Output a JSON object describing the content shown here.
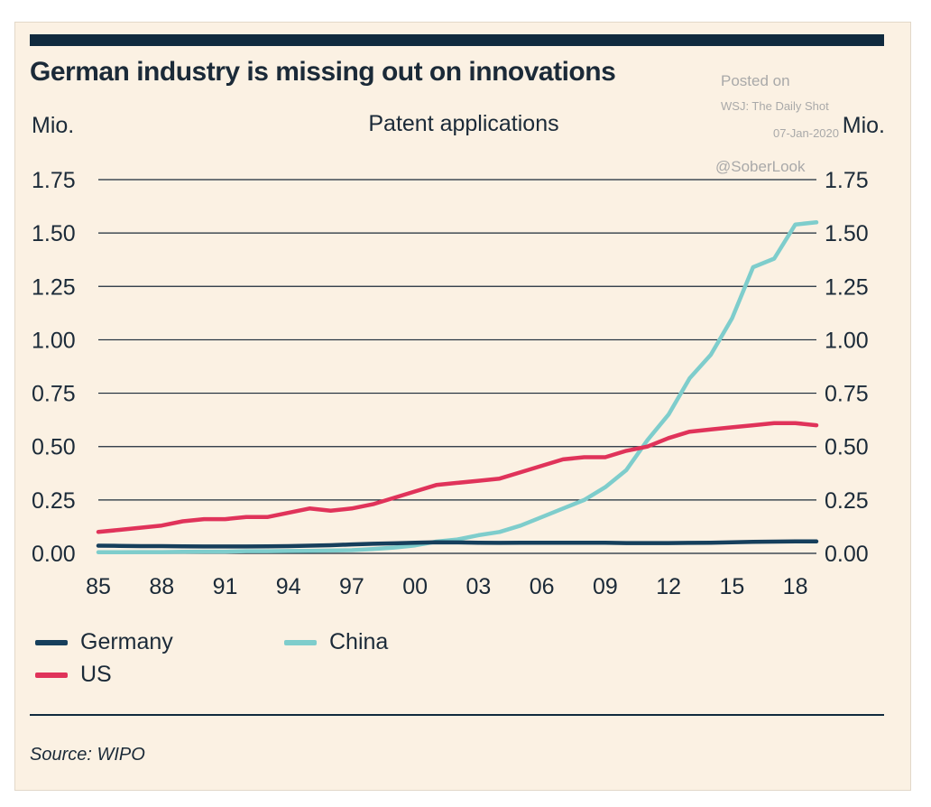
{
  "title": "German industry is missing out on innovations",
  "watermark": {
    "line1": "Posted on",
    "line2": "WSJ: The Daily Shot",
    "line3": "07-Jan-2020",
    "line4": "@SoberLook"
  },
  "source": "Source: WIPO",
  "colors": {
    "germany": "#163f5c",
    "us": "#e0335a",
    "china": "#7ecdcc",
    "grid": "#1b2a38",
    "background": "#fbf1e3"
  },
  "chart_data": {
    "type": "line",
    "title": "Patent applications",
    "ylabel_left": "Mio.",
    "ylabel_right": "Mio.",
    "ylim": [
      0,
      1.75
    ],
    "yticks": [
      "0.00",
      "0.25",
      "0.50",
      "0.75",
      "1.00",
      "1.25",
      "1.50",
      "1.75"
    ],
    "xlim": [
      1985,
      2019
    ],
    "xticks": [
      "85",
      "88",
      "91",
      "94",
      "97",
      "00",
      "03",
      "06",
      "09",
      "12",
      "15",
      "18"
    ],
    "xtick_years": [
      1985,
      1988,
      1991,
      1994,
      1997,
      2000,
      2003,
      2006,
      2009,
      2012,
      2015,
      2018
    ],
    "legend_position": "bottom-left",
    "grid": true,
    "series": [
      {
        "name": "Germany",
        "color": "#163f5c",
        "x": [
          1985,
          1986,
          1987,
          1988,
          1989,
          1990,
          1991,
          1992,
          1993,
          1994,
          1995,
          1996,
          1997,
          1998,
          1999,
          2000,
          2001,
          2002,
          2003,
          2004,
          2005,
          2006,
          2007,
          2008,
          2009,
          2010,
          2011,
          2012,
          2013,
          2014,
          2015,
          2016,
          2017,
          2018,
          2019
        ],
        "y": [
          0.036,
          0.035,
          0.034,
          0.034,
          0.033,
          0.032,
          0.032,
          0.032,
          0.033,
          0.034,
          0.036,
          0.038,
          0.042,
          0.045,
          0.047,
          0.05,
          0.052,
          0.051,
          0.05,
          0.049,
          0.05,
          0.05,
          0.05,
          0.05,
          0.05,
          0.048,
          0.048,
          0.048,
          0.049,
          0.05,
          0.052,
          0.054,
          0.055,
          0.056,
          0.056
        ]
      },
      {
        "name": "US",
        "color": "#e0335a",
        "x": [
          1985,
          1986,
          1987,
          1988,
          1989,
          1990,
          1991,
          1992,
          1993,
          1994,
          1995,
          1996,
          1997,
          1998,
          1999,
          2000,
          2001,
          2002,
          2003,
          2004,
          2005,
          2006,
          2007,
          2008,
          2009,
          2010,
          2011,
          2012,
          2013,
          2014,
          2015,
          2016,
          2017,
          2018,
          2019
        ],
        "y": [
          0.1,
          0.11,
          0.12,
          0.13,
          0.15,
          0.16,
          0.16,
          0.17,
          0.17,
          0.19,
          0.21,
          0.2,
          0.21,
          0.23,
          0.26,
          0.29,
          0.32,
          0.33,
          0.34,
          0.35,
          0.38,
          0.41,
          0.44,
          0.45,
          0.45,
          0.48,
          0.5,
          0.54,
          0.57,
          0.58,
          0.59,
          0.6,
          0.61,
          0.61,
          0.6
        ]
      },
      {
        "name": "China",
        "color": "#7ecdcc",
        "x": [
          1985,
          1986,
          1987,
          1988,
          1989,
          1990,
          1991,
          1992,
          1993,
          1994,
          1995,
          1996,
          1997,
          1998,
          1999,
          2000,
          2001,
          2002,
          2003,
          2004,
          2005,
          2006,
          2007,
          2008,
          2009,
          2010,
          2011,
          2012,
          2013,
          2014,
          2015,
          2016,
          2017,
          2018,
          2019
        ],
        "y": [
          0.005,
          0.005,
          0.006,
          0.006,
          0.007,
          0.008,
          0.008,
          0.01,
          0.01,
          0.011,
          0.012,
          0.013,
          0.015,
          0.02,
          0.027,
          0.037,
          0.055,
          0.065,
          0.085,
          0.1,
          0.13,
          0.17,
          0.21,
          0.25,
          0.31,
          0.39,
          0.53,
          0.65,
          0.82,
          0.93,
          1.1,
          1.34,
          1.38,
          1.54,
          1.55
        ]
      }
    ]
  }
}
